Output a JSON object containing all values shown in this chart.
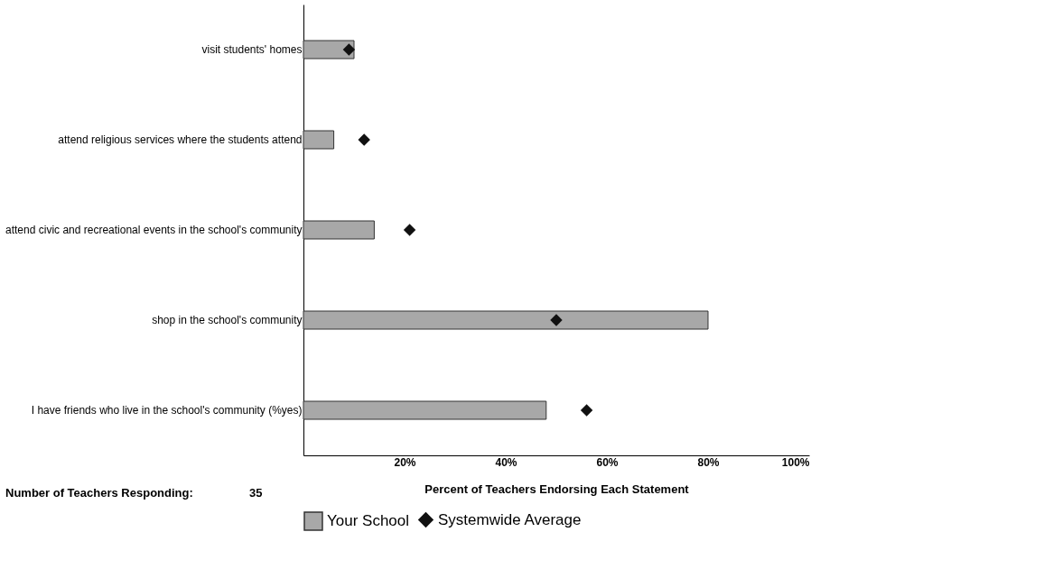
{
  "chart_data": {
    "type": "bar",
    "orientation": "horizontal",
    "categories": [
      "visit students' homes",
      "attend religious services where the students attend",
      "attend civic and recreational events in the school's community",
      "shop in the school's community",
      "I have friends who live in the school's community (%yes)"
    ],
    "series": [
      {
        "name": "Your School",
        "color": "#a8a8a8",
        "values": [
          10,
          6,
          14,
          80,
          48
        ]
      },
      {
        "name": "Systemwide Average",
        "type": "scatter",
        "marker": "diamond",
        "color": "#111111",
        "values": [
          9,
          12,
          21,
          50,
          56
        ]
      }
    ],
    "xlim": [
      0,
      100
    ],
    "xticks": [
      {
        "value": 20,
        "label": "20%"
      },
      {
        "value": 40,
        "label": "40%"
      },
      {
        "value": 60,
        "label": "60%"
      },
      {
        "value": 80,
        "label": "80%"
      },
      {
        "value": 100,
        "label": "100%"
      }
    ],
    "xlabel": "Percent of Teachers Endorsing Each Statement",
    "annotations": [
      "Number of Teachers Responding:",
      "35"
    ],
    "grid": false,
    "legend": "bottom"
  }
}
